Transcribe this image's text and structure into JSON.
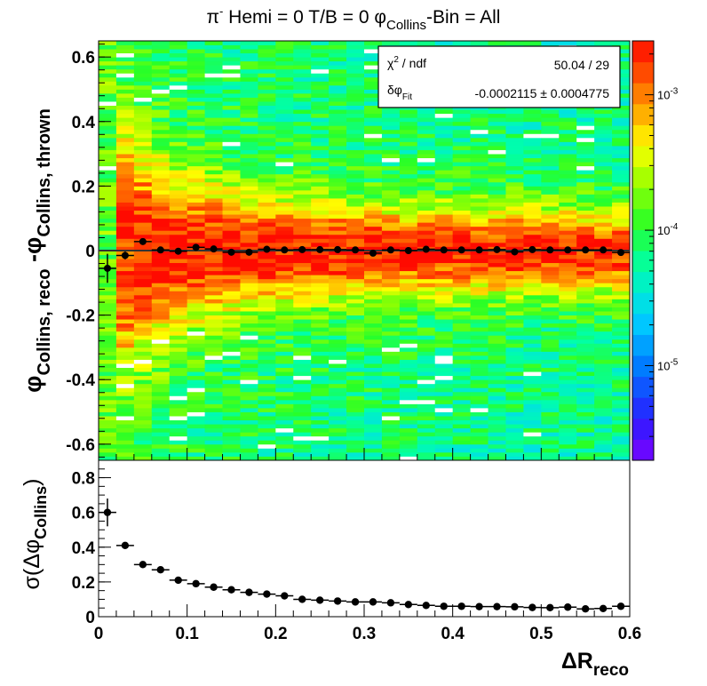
{
  "figure": {
    "title_parts": {
      "pi": "π",
      "minus": "-",
      "rest": " Hemi = 0 T/B = 0 ",
      "phi": "φ",
      "collins_sub": "Collins",
      "tail": "-Bin = All"
    },
    "top_ylabel_parts": {
      "phi1": "φ",
      "sub1": "Collins, reco",
      "minus": "-",
      "phi2": "φ",
      "sub2": "Collins, thrown"
    },
    "bottom_ylabel_parts": {
      "sigma": "σ(",
      "delta": "Δφ",
      "sub": "Collins",
      "close": ")"
    },
    "xlabel_parts": {
      "main": "ΔR",
      "sub": "reco"
    },
    "stats_box": {
      "row1_label": "χ",
      "row1_sup": "2",
      "row1_rest": " / ndf",
      "row1_value": "50.04 / 29",
      "row2_label": "δφ",
      "row2_sub": "Fit",
      "row2_value": "-0.0002115 ± 0.0004775"
    },
    "colorbar": {
      "tick_labels": [
        {
          "base": "10",
          "exp": "-3"
        },
        {
          "base": "10",
          "exp": "-4"
        },
        {
          "base": "10",
          "exp": "-5"
        }
      ]
    }
  },
  "chart_data": [
    {
      "type": "heatmap",
      "title": "π- Hemi = 0 T/B = 0 φCollins-Bin = All",
      "xlabel": "",
      "ylabel": "φCollins, reco -φCollins, thrown",
      "xlim": [
        0,
        0.6
      ],
      "ylim": [
        -0.65,
        0.65
      ],
      "yticks": [
        -0.6,
        -0.4,
        -0.2,
        0,
        0.2,
        0.4,
        0.6
      ],
      "yticks_labels": [
        "-0.6",
        "-0.4",
        "-0.2",
        "0",
        "0.2",
        "0.4",
        "0.6"
      ],
      "z_scale": "log",
      "z_range": [
        2e-06,
        0.0025
      ],
      "color_scale": "ROOT rainbow: violet (low) → blue → cyan → green → yellow → orange → red (high)",
      "grid": false,
      "overlay_profile": {
        "type": "scatter",
        "x": [
          0.01,
          0.03,
          0.05,
          0.07,
          0.09,
          0.11,
          0.13,
          0.15,
          0.17,
          0.19,
          0.21,
          0.23,
          0.25,
          0.27,
          0.29,
          0.31,
          0.33,
          0.35,
          0.37,
          0.39,
          0.41,
          0.43,
          0.45,
          0.47,
          0.49,
          0.51,
          0.53,
          0.55,
          0.57,
          0.59
        ],
        "y": [
          -0.055,
          -0.015,
          0.028,
          0.002,
          -0.002,
          0.01,
          0.005,
          -0.005,
          -0.005,
          0.004,
          0.002,
          0.003,
          0.003,
          0.003,
          0.002,
          -0.008,
          0.002,
          0.0,
          0.004,
          0.002,
          0.002,
          0.002,
          0.003,
          -0.004,
          0.003,
          0.002,
          0.002,
          0.002,
          0.002,
          -0.006
        ],
        "yerr": [
          0.045,
          0.012,
          0.008,
          0.005,
          0.004,
          0.003,
          0.003,
          0.003,
          0.003,
          0.003,
          0.003,
          0.003,
          0.003,
          0.003,
          0.003,
          0.003,
          0.003,
          0.003,
          0.003,
          0.003,
          0.003,
          0.003,
          0.003,
          0.003,
          0.003,
          0.003,
          0.003,
          0.003,
          0.003,
          0.003
        ],
        "xerr": 0.01,
        "fit_line_y": 0.0
      }
    },
    {
      "type": "scatter",
      "title": "",
      "xlabel": "ΔRreco",
      "ylabel": "σ(ΔφCollins)",
      "xlim": [
        0,
        0.6
      ],
      "ylim": [
        0,
        0.9
      ],
      "xticks": [
        0,
        0.1,
        0.2,
        0.3,
        0.4,
        0.5,
        0.6
      ],
      "xticks_labels": [
        "0",
        "0.1",
        "0.2",
        "0.3",
        "0.4",
        "0.5",
        "0.6"
      ],
      "yticks": [
        0,
        0.2,
        0.4,
        0.6,
        0.8
      ],
      "yticks_labels": [
        "0",
        "0.2",
        "0.4",
        "0.6",
        "0.8"
      ],
      "grid": false,
      "x": [
        0.01,
        0.03,
        0.05,
        0.07,
        0.09,
        0.11,
        0.13,
        0.15,
        0.17,
        0.19,
        0.21,
        0.23,
        0.25,
        0.27,
        0.29,
        0.31,
        0.33,
        0.35,
        0.37,
        0.39,
        0.41,
        0.43,
        0.45,
        0.47,
        0.49,
        0.51,
        0.53,
        0.55,
        0.57,
        0.59
      ],
      "y": [
        0.6,
        0.41,
        0.3,
        0.27,
        0.21,
        0.19,
        0.17,
        0.155,
        0.14,
        0.13,
        0.12,
        0.1,
        0.095,
        0.09,
        0.085,
        0.085,
        0.08,
        0.07,
        0.065,
        0.06,
        0.06,
        0.058,
        0.058,
        0.057,
        0.053,
        0.052,
        0.055,
        0.045,
        0.047,
        0.06
      ],
      "yerr": [
        0.08,
        0.015,
        0.008,
        0.006,
        0.005,
        0.004,
        0.004,
        0.004,
        0.003,
        0.003,
        0.003,
        0.003,
        0.003,
        0.003,
        0.003,
        0.003,
        0.003,
        0.003,
        0.003,
        0.003,
        0.003,
        0.003,
        0.003,
        0.003,
        0.003,
        0.003,
        0.003,
        0.003,
        0.003,
        0.003
      ],
      "xerr": 0.01
    }
  ]
}
